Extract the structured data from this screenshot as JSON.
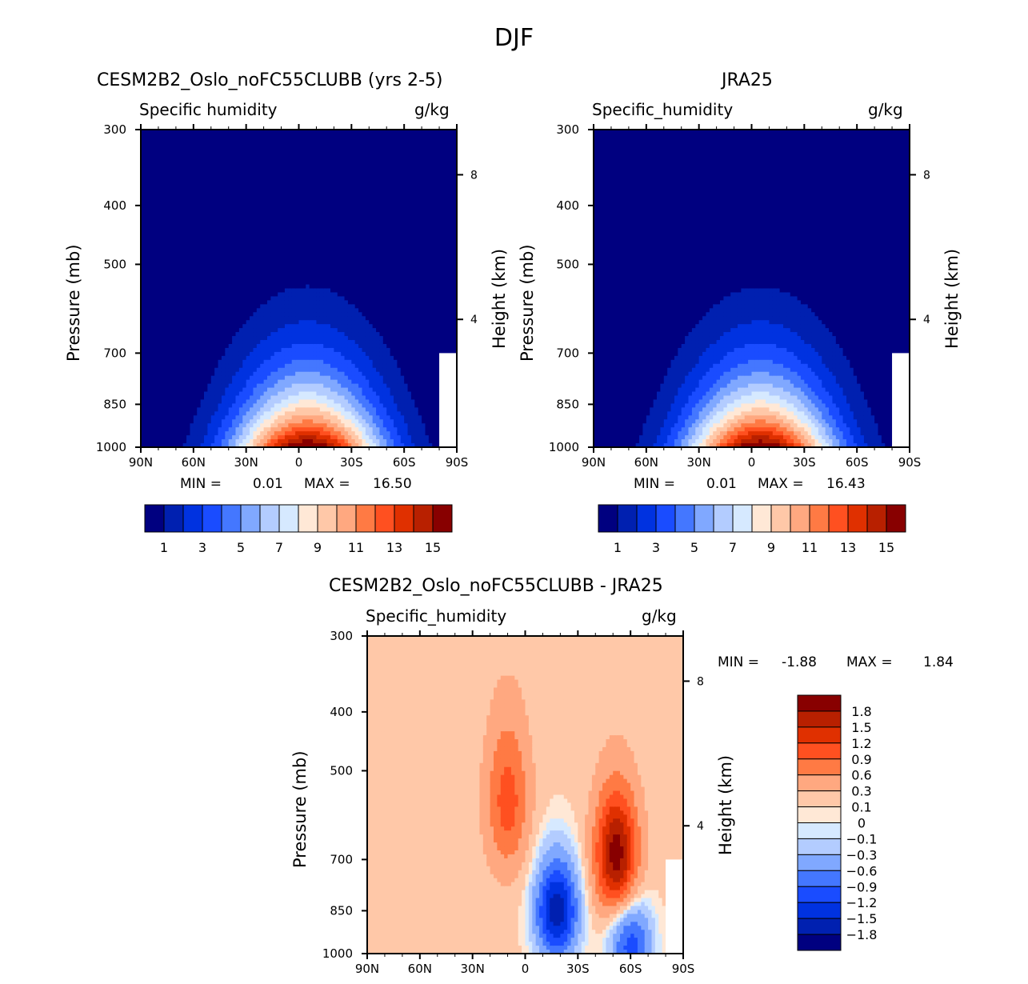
{
  "suptitle": "DJF",
  "palette": [
    "#000080",
    "#0020b0",
    "#0032e0",
    "#1a4cff",
    "#4477ff",
    "#80a8ff",
    "#b3ccff",
    "#d6e9ff",
    "#ffe8d6",
    "#ffc8a8",
    "#ffa880",
    "#ff7a44",
    "#ff5020",
    "#e03000",
    "#b82000",
    "#880000"
  ],
  "chart_data": [
    {
      "type": "heatmap",
      "title": "CESM2B2_Oslo_noFC55CLUBB (yrs 2-5)",
      "left_string": "Specific humidity",
      "right_string": "g/kg",
      "xlabel": "",
      "ylabel": "Pressure (mb)",
      "ylabel_right": "Height (km)",
      "x_ticks": [
        "90N",
        "60N",
        "30N",
        "0",
        "30S",
        "60S",
        "90S"
      ],
      "y_ticks": [
        "300",
        "400",
        "500",
        "700",
        "850",
        "1000"
      ],
      "y_ticks_values": [
        300,
        400,
        500,
        700,
        850,
        1000
      ],
      "y_right_ticks": [
        "8",
        "4"
      ],
      "ylim": [
        1000,
        300
      ],
      "xlim": [
        90,
        -90
      ],
      "min_label": "MIN =",
      "min_value": "0.01",
      "max_label": "MAX =",
      "max_value": "16.50",
      "colorbar_labels": [
        "1",
        "3",
        "5",
        "7",
        "9",
        "11",
        "13",
        "15"
      ],
      "levels": [
        1,
        2,
        3,
        4,
        5,
        6,
        7,
        8,
        9,
        10,
        11,
        12,
        13,
        14,
        15
      ],
      "peak_value": 16.5,
      "peak_lat": -5
    },
    {
      "type": "heatmap",
      "title": "JRA25",
      "left_string": "Specific_humidity",
      "right_string": "g/kg",
      "ylabel": "Pressure (mb)",
      "ylabel_right": "Height (km)",
      "x_ticks": [
        "90N",
        "60N",
        "30N",
        "0",
        "30S",
        "60S",
        "90S"
      ],
      "y_ticks": [
        "300",
        "400",
        "500",
        "700",
        "850",
        "1000"
      ],
      "y_ticks_values": [
        300,
        400,
        500,
        700,
        850,
        1000
      ],
      "y_right_ticks": [
        "8",
        "4"
      ],
      "ylim": [
        1000,
        300
      ],
      "xlim": [
        90,
        -90
      ],
      "min_label": "MIN =",
      "min_value": "0.01",
      "max_label": "MAX =",
      "max_value": "16.43",
      "colorbar_labels": [
        "1",
        "3",
        "5",
        "7",
        "9",
        "11",
        "13",
        "15"
      ],
      "levels": [
        1,
        2,
        3,
        4,
        5,
        6,
        7,
        8,
        9,
        10,
        11,
        12,
        13,
        14,
        15
      ],
      "peak_value": 16.43,
      "peak_lat": -5
    },
    {
      "type": "heatmap",
      "title": "CESM2B2_Oslo_noFC55CLUBB - JRA25",
      "left_string": "Specific_humidity",
      "right_string": "g/kg",
      "ylabel": "Pressure (mb)",
      "ylabel_right": "Height (km)",
      "x_ticks": [
        "90N",
        "60N",
        "30N",
        "0",
        "30S",
        "60S",
        "90S"
      ],
      "y_ticks": [
        "300",
        "400",
        "500",
        "700",
        "850",
        "1000"
      ],
      "y_ticks_values": [
        300,
        400,
        500,
        700,
        850,
        1000
      ],
      "y_right_ticks": [
        "8",
        "4"
      ],
      "ylim": [
        1000,
        300
      ],
      "xlim": [
        90,
        -90
      ],
      "min_label": "MIN =",
      "min_value": "-1.88",
      "max_label": "MAX =",
      "max_value": "1.84",
      "colorbar_labels": [
        "1.8",
        "1.5",
        "1.2",
        "0.9",
        "0.6",
        "0.3",
        "0.1",
        "0",
        "-0.1",
        "-0.3",
        "-0.6",
        "-0.9",
        "-1.2",
        "-1.5",
        "-1.8"
      ],
      "levels": [
        -1.8,
        -1.5,
        -1.2,
        -0.9,
        -0.6,
        -0.3,
        -0.1,
        0,
        0.1,
        0.3,
        0.6,
        0.9,
        1.2,
        1.5,
        1.8
      ],
      "features": [
        {
          "kind": "max",
          "lat": 10,
          "p": 560,
          "value": 0.9
        },
        {
          "kind": "max",
          "lat": -52,
          "p": 690,
          "value": 1.84
        },
        {
          "kind": "min",
          "lat": -18,
          "p": 850,
          "value": -1.88
        },
        {
          "kind": "min",
          "lat": -60,
          "p": 960,
          "value": -1.2
        }
      ]
    }
  ]
}
